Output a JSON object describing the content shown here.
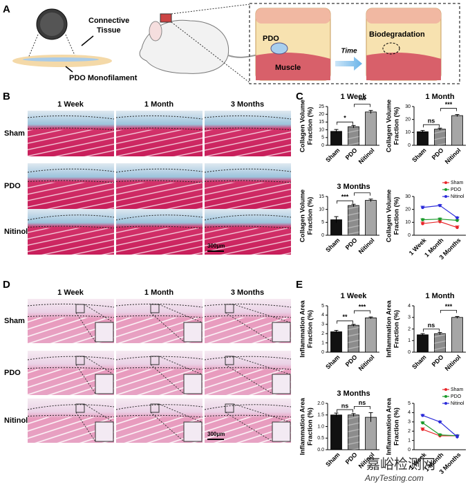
{
  "panel_a": {
    "letter": "A",
    "connective_tissue": [
      "Connective",
      "Tissue"
    ],
    "monofilament": "PDO Monofilament",
    "pdo": "PDO",
    "time": "Time",
    "biodegradation": "Biodegradation",
    "muscle": "Muscle"
  },
  "panel_b": {
    "letter": "B",
    "columns": [
      "1 Week",
      "1 Month",
      "3 Months"
    ],
    "rows": [
      "Sham",
      "PDO",
      "Nitinol"
    ],
    "scale_bar": "300μm"
  },
  "panel_c": {
    "letter": "C",
    "charts": [
      {
        "type": "bar",
        "title": "1 Week",
        "ylabel": [
          "Collagen Volume",
          "Fraction (%)"
        ],
        "categories": [
          "Sham",
          "PDO",
          "Nitinol"
        ],
        "values": [
          9,
          12,
          21.5
        ],
        "errors": [
          1.2,
          0.8,
          1.0
        ],
        "colors": [
          "#111111",
          "#8c8c8c",
          "#a6a6a6"
        ],
        "ylim": [
          0,
          25
        ],
        "yticks": [
          0,
          5,
          10,
          15,
          20,
          25
        ],
        "significance": [
          "*",
          "***"
        ]
      },
      {
        "type": "bar",
        "title": "1 Month",
        "ylabel": [
          "Collagen Volume",
          "Fraction (%)"
        ],
        "categories": [
          "Sham",
          "PDO",
          "Nitinol"
        ],
        "values": [
          10.5,
          12.5,
          23
        ],
        "errors": [
          1.0,
          0.8,
          0.8
        ],
        "colors": [
          "#111111",
          "#8c8c8c",
          "#a6a6a6"
        ],
        "ylim": [
          0,
          30
        ],
        "yticks": [
          0,
          10,
          20,
          30
        ],
        "significance": [
          "ns",
          "***"
        ]
      },
      {
        "type": "bar",
        "title": "3 Months",
        "ylabel": [
          "Collagen Volume",
          "Fraction (%)"
        ],
        "categories": [
          "Sham",
          "PDO",
          "Nitinol"
        ],
        "values": [
          6,
          11.5,
          13.5
        ],
        "errors": [
          1.2,
          0.5,
          0.5
        ],
        "colors": [
          "#111111",
          "#8c8c8c",
          "#a6a6a6"
        ],
        "ylim": [
          0,
          15
        ],
        "yticks": [
          0,
          5,
          10,
          15
        ],
        "significance": [
          "***",
          "*"
        ]
      },
      {
        "type": "line",
        "ylabel": [
          "Collagen Volume",
          "Fraction (%)"
        ],
        "categories": [
          "1 Week",
          "1 Month",
          "3 Months"
        ],
        "legend": "upper right",
        "ylim": [
          0,
          30
        ],
        "yticks": [
          0,
          10,
          20,
          30
        ],
        "series": [
          {
            "name": "Sham",
            "color": "#e8262a",
            "values": [
              9,
              10.5,
              6
            ],
            "errors": [
              1.2,
              1.0,
              1.2
            ]
          },
          {
            "name": "PDO",
            "color": "#1a9a2a",
            "values": [
              12,
              12.5,
              11.5
            ],
            "errors": [
              0.8,
              0.8,
              0.5
            ]
          },
          {
            "name": "Nitinol",
            "color": "#2b2bd9",
            "values": [
              21.5,
              23,
              13.5
            ],
            "errors": [
              1.0,
              0.8,
              0.5
            ]
          }
        ]
      }
    ]
  },
  "panel_d": {
    "letter": "D",
    "columns": [
      "1 Week",
      "1 Month",
      "3 Months"
    ],
    "rows": [
      "Sham",
      "PDO",
      "Nitinol"
    ],
    "scale_bar": "300μm"
  },
  "panel_e": {
    "letter": "E",
    "charts": [
      {
        "type": "bar",
        "title": "1 Week",
        "ylabel": [
          "Inflammation Area",
          "Fraction (%)"
        ],
        "categories": [
          "Sham",
          "PDO",
          "Nitinol"
        ],
        "values": [
          2.2,
          2.9,
          3.7
        ],
        "errors": [
          0.15,
          0.1,
          0.1
        ],
        "colors": [
          "#111111",
          "#8c8c8c",
          "#a6a6a6"
        ],
        "ylim": [
          0,
          5
        ],
        "yticks": [
          0,
          1,
          2,
          3,
          4,
          5
        ],
        "significance": [
          "**",
          "***"
        ]
      },
      {
        "type": "bar",
        "title": "1 Month",
        "ylabel": [
          "Inflammation Area",
          "Fraction (%)"
        ],
        "categories": [
          "Sham",
          "PDO",
          "Nitinol"
        ],
        "values": [
          1.5,
          1.6,
          3.0
        ],
        "errors": [
          0.1,
          0.1,
          0.08
        ],
        "colors": [
          "#111111",
          "#8c8c8c",
          "#a6a6a6"
        ],
        "ylim": [
          0,
          4
        ],
        "yticks": [
          0,
          1,
          2,
          3,
          4
        ],
        "significance": [
          "ns",
          "***"
        ]
      },
      {
        "type": "bar",
        "title": "3 Months",
        "ylabel": [
          "Inflammation Area",
          "Fraction (%)"
        ],
        "categories": [
          "Sham",
          "PDO",
          "Nitinol"
        ],
        "values": [
          1.5,
          1.5,
          1.4
        ],
        "errors": [
          0.08,
          0.06,
          0.2
        ],
        "colors": [
          "#111111",
          "#8c8c8c",
          "#a6a6a6"
        ],
        "ylim": [
          0,
          2
        ],
        "yticks": [
          {
            "value": 0,
            "label": "0.0"
          },
          {
            "value": 0.5,
            "label": "0.5"
          },
          {
            "value": 1,
            "label": "1.0"
          },
          {
            "value": 1.5,
            "label": "1.5"
          },
          {
            "value": 2,
            "label": "2.0"
          }
        ],
        "significance": [
          "ns",
          "ns"
        ]
      },
      {
        "type": "line",
        "ylabel": [
          "Inflammation Area",
          "Fraction (%)"
        ],
        "categories": [
          "1 Week",
          "1 Month",
          "3 Months"
        ],
        "legend": "upper right",
        "ylim": [
          0,
          5
        ],
        "yticks": [
          0,
          1,
          2,
          3,
          4,
          5
        ],
        "series": [
          {
            "name": "Sham",
            "color": "#e8262a",
            "values": [
              2.2,
              1.5,
              1.5
            ],
            "errors": [
              0.15,
              0.1,
              0.08
            ]
          },
          {
            "name": "PDO",
            "color": "#1a9a2a",
            "values": [
              2.9,
              1.6,
              1.5
            ],
            "errors": [
              0.1,
              0.1,
              0.06
            ]
          },
          {
            "name": "Nitinol",
            "color": "#2b2bd9",
            "values": [
              3.7,
              3.0,
              1.4
            ],
            "errors": [
              0.1,
              0.08,
              0.2
            ]
          }
        ]
      }
    ]
  },
  "watermark": [
    "嘉峪检测网",
    "AnyTesting.com"
  ]
}
